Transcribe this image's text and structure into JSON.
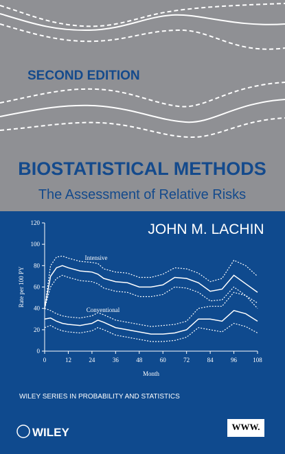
{
  "cover": {
    "edition": "SECOND EDITION",
    "title": "BIOSTATISTICAL METHODS",
    "subtitle": "The Assessment of Relative Risks",
    "author": "JOHN M. LACHIN",
    "series": "WILEY SERIES IN PROBABILITY AND STATISTICS",
    "publisher": "WILEY",
    "web_badge": "WWW."
  },
  "chart_data": {
    "type": "line",
    "xlabel": "Month",
    "ylabel": "Rate per 100 PY",
    "annotations": [
      "Intensive",
      "Conventional"
    ],
    "x": [
      0,
      3,
      6,
      9,
      12,
      18,
      24,
      27,
      30,
      36,
      42,
      48,
      54,
      60,
      66,
      72,
      78,
      84,
      90,
      96,
      102,
      108
    ],
    "xlim": [
      0,
      108
    ],
    "xticks": [
      0,
      12,
      24,
      36,
      48,
      60,
      72,
      84,
      96,
      108
    ],
    "ylim": [
      0,
      120
    ],
    "yticks": [
      0,
      20,
      40,
      60,
      80,
      100,
      120
    ],
    "series": [
      {
        "color": "#ffffff",
        "dash": false,
        "values": [
          40,
          70,
          78,
          80,
          78,
          75,
          74,
          72,
          68,
          65,
          64,
          60,
          60,
          62,
          69,
          68,
          64,
          56,
          58,
          71,
          63,
          55
        ]
      },
      {
        "color": "#ffffff",
        "dash": true,
        "values": [
          40,
          80,
          88,
          89,
          87,
          84,
          83,
          82,
          77,
          74,
          73,
          69,
          69,
          72,
          78,
          77,
          73,
          65,
          68,
          85,
          80,
          70
        ]
      },
      {
        "color": "#ffffff",
        "dash": true,
        "values": [
          40,
          60,
          68,
          71,
          69,
          66,
          65,
          63,
          59,
          56,
          55,
          51,
          51,
          53,
          60,
          59,
          55,
          47,
          48,
          60,
          52,
          45
        ]
      },
      {
        "color": "#ffffff",
        "dash": false,
        "values": [
          30,
          31,
          28,
          26,
          25,
          24,
          26,
          29,
          27,
          22,
          20,
          18,
          16,
          16,
          17,
          20,
          30,
          30,
          28,
          38,
          35,
          28
        ]
      },
      {
        "color": "#ffffff",
        "dash": true,
        "values": [
          40,
          38,
          35,
          33,
          32,
          31,
          33,
          36,
          34,
          29,
          27,
          25,
          23,
          24,
          25,
          28,
          40,
          42,
          42,
          55,
          52,
          40
        ]
      },
      {
        "color": "#ffffff",
        "dash": true,
        "values": [
          22,
          24,
          21,
          19,
          18,
          17,
          19,
          22,
          20,
          15,
          13,
          11,
          9,
          9,
          10,
          13,
          22,
          20,
          18,
          26,
          23,
          17
        ]
      }
    ]
  }
}
